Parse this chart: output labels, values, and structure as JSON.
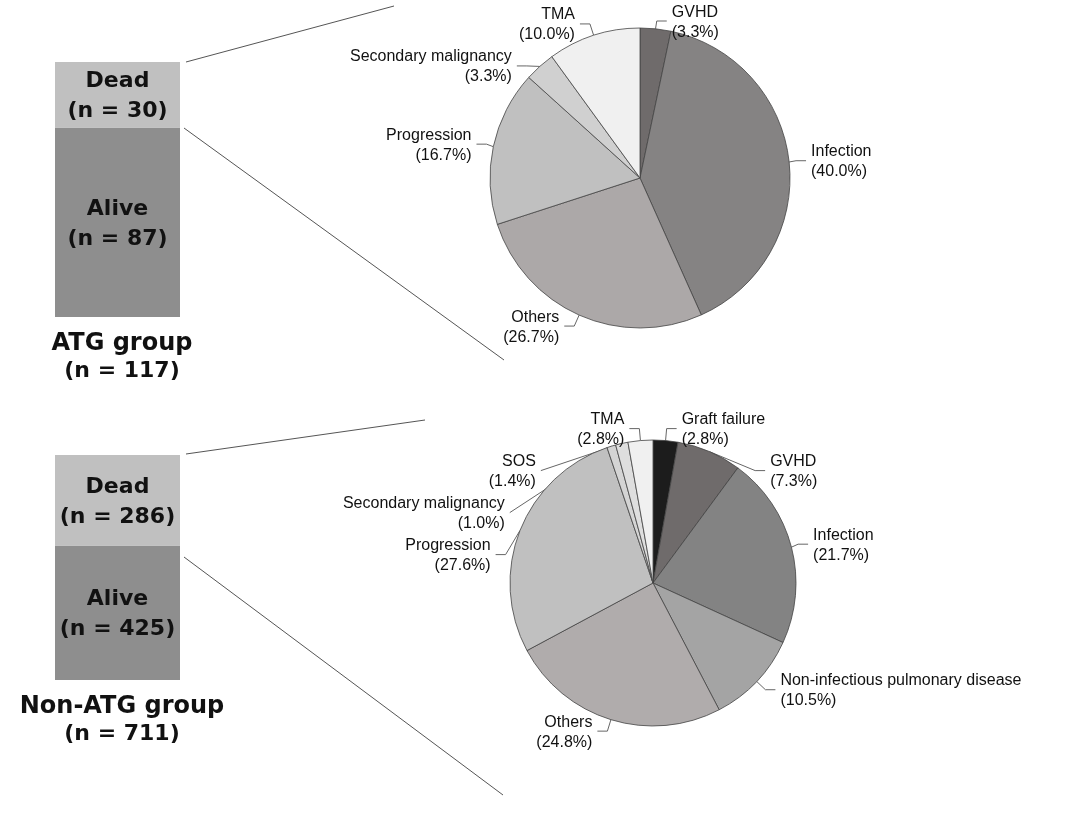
{
  "chart_data": [
    {
      "type": "bar",
      "title": "ATG group",
      "subtitle": "(n = 117)",
      "categories": [
        null
      ],
      "stacked": true,
      "series": [
        {
          "name": "Alive",
          "color": "#8e8e8e",
          "values": [
            87
          ],
          "value_labels": [
            "(n = 87)"
          ]
        },
        {
          "name": "Dead",
          "color": "#c0c0c0",
          "values": [
            30
          ],
          "value_labels": [
            "(n = 30)"
          ]
        }
      ]
    },
    {
      "type": "pie",
      "categories": [
        "GVHD",
        "Infection",
        "Others",
        "Progression",
        "Secondary malignancy",
        "TMA"
      ],
      "values": [
        3.3,
        40.0,
        26.7,
        16.7,
        3.3,
        10.0
      ],
      "value_labels": [
        "(3.3%)",
        "(40.0%)",
        "(26.7%)",
        "(16.7%)",
        "(3.3%)",
        "(10.0%)"
      ],
      "colors": [
        "#6f6b6b",
        "#858383",
        "#aca8a8",
        "#c0c0c0",
        "#d0d0d0",
        "#f0f0f0"
      ]
    },
    {
      "type": "bar",
      "title": "Non-ATG group",
      "subtitle": "(n = 711)",
      "categories": [
        null
      ],
      "stacked": true,
      "series": [
        {
          "name": "Alive",
          "color": "#8e8e8e",
          "values": [
            425
          ],
          "value_labels": [
            "(n = 425)"
          ]
        },
        {
          "name": "Dead",
          "color": "#c0c0c0",
          "values": [
            286
          ],
          "value_labels": [
            "(n = 286)"
          ]
        }
      ]
    },
    {
      "type": "pie",
      "categories": [
        "Graft failure",
        "GVHD",
        "Infection",
        "Non-infectious pulmonary disease",
        "Others",
        "Progression",
        "Secondary malignancy",
        "SOS",
        "TMA"
      ],
      "values": [
        2.8,
        7.3,
        21.7,
        10.5,
        24.8,
        27.6,
        1.0,
        1.4,
        2.8
      ],
      "value_labels": [
        "(2.8%)",
        "(7.3%)",
        "(21.7%)",
        "(10.5%)",
        "(24.8%)",
        "(27.6%)",
        "(1.0%)",
        "(1.4%)",
        "(2.8%)"
      ],
      "colors": [
        "#1c1c1c",
        "#6f6b6b",
        "#838383",
        "#a4a4a4",
        "#b0acac",
        "#c0c0c0",
        "#d4d4d4",
        "#dedede",
        "#f0f0f0"
      ]
    }
  ]
}
